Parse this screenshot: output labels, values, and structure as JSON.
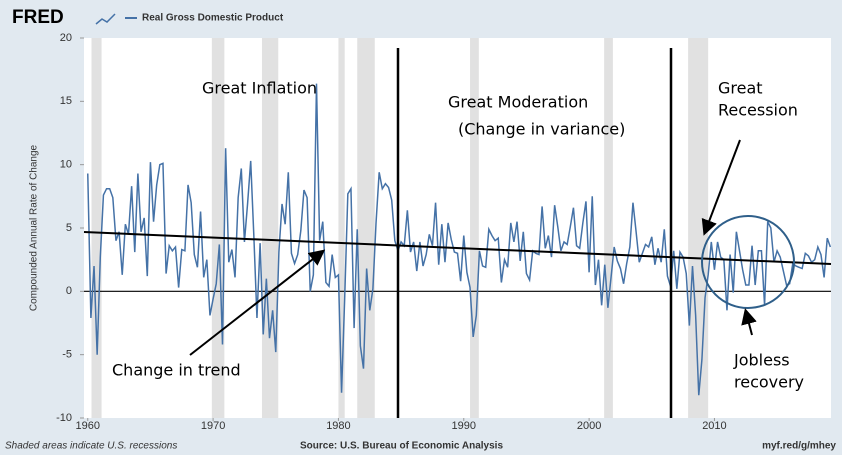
{
  "chart_data": {
    "type": "line",
    "brand": "FRED",
    "title": "Real Gross Domestic Product",
    "y_label": "Compounded Annual Rate of Change",
    "footer_left": "Shaded areas indicate U.S. recessions",
    "footer_source": "Source: U.S. Bureau of Economic Analysis",
    "footer_link": "myf.red/g/mhey",
    "annotations": {
      "inflation": "Great Inflation",
      "moderation": "Great Moderation",
      "variance": "(Change in variance)",
      "recession": [
        "Great",
        "Recession"
      ],
      "trend": "Change in trend",
      "jobless": [
        "Jobless",
        "recovery"
      ]
    },
    "xlim": [
      1959.7,
      2019.3
    ],
    "xticks": [
      1960,
      1970,
      1980,
      1990,
      2000,
      2010
    ],
    "ylim": [
      -10,
      20
    ],
    "yticks": [
      -10,
      -5,
      0,
      5,
      10,
      15,
      20
    ],
    "recessions": [
      [
        1960.3,
        1961.1
      ],
      [
        1969.9,
        1970.9
      ],
      [
        1973.9,
        1975.2
      ],
      [
        1980.0,
        1980.5
      ],
      [
        1981.5,
        1982.9
      ],
      [
        1990.5,
        1991.2
      ],
      [
        2001.2,
        2001.9
      ],
      [
        2007.9,
        2009.5
      ]
    ],
    "recession_color": "#e1e1e1",
    "series": [
      {
        "name": "Real Gross Domestic Product",
        "color": "#4572a7",
        "x": [
          1960,
          1960.25,
          1960.5,
          1960.75,
          1961,
          1961.25,
          1961.5,
          1961.75,
          1962,
          1962.25,
          1962.5,
          1962.75,
          1963,
          1963.25,
          1963.5,
          1963.75,
          1964,
          1964.25,
          1964.5,
          1964.75,
          1965,
          1965.25,
          1965.5,
          1965.75,
          1966,
          1966.25,
          1966.5,
          1966.75,
          1967,
          1967.25,
          1967.5,
          1967.75,
          1968,
          1968.25,
          1968.5,
          1968.75,
          1969,
          1969.25,
          1969.5,
          1969.75,
          1970,
          1970.25,
          1970.5,
          1970.75,
          1971,
          1971.25,
          1971.5,
          1971.75,
          1972,
          1972.25,
          1972.5,
          1972.75,
          1973,
          1973.25,
          1973.5,
          1973.75,
          1974,
          1974.25,
          1974.5,
          1974.75,
          1975,
          1975.25,
          1975.5,
          1975.75,
          1976,
          1976.25,
          1976.5,
          1976.75,
          1977,
          1977.25,
          1977.5,
          1977.75,
          1978,
          1978.25,
          1978.5,
          1978.75,
          1979,
          1979.25,
          1979.5,
          1979.75,
          1980,
          1980.25,
          1980.5,
          1980.75,
          1981,
          1981.25,
          1981.5,
          1981.75,
          1982,
          1982.25,
          1982.5,
          1982.75,
          1983,
          1983.25,
          1983.5,
          1983.75,
          1984,
          1984.25,
          1984.5,
          1984.75,
          1985,
          1985.25,
          1985.5,
          1985.75,
          1986,
          1986.25,
          1986.5,
          1986.75,
          1987,
          1987.25,
          1987.5,
          1987.75,
          1988,
          1988.25,
          1988.5,
          1988.75,
          1989,
          1989.25,
          1989.5,
          1989.75,
          1990,
          1990.25,
          1990.5,
          1990.75,
          1991,
          1991.25,
          1991.5,
          1991.75,
          1992,
          1992.25,
          1992.5,
          1992.75,
          1993,
          1993.25,
          1993.5,
          1993.75,
          1994,
          1994.25,
          1994.5,
          1994.75,
          1995,
          1995.25,
          1995.5,
          1995.75,
          1996,
          1996.25,
          1996.5,
          1996.75,
          1997,
          1997.25,
          1997.5,
          1997.75,
          1998,
          1998.25,
          1998.5,
          1998.75,
          1999,
          1999.25,
          1999.5,
          1999.75,
          2000,
          2000.25,
          2000.5,
          2000.75,
          2001,
          2001.25,
          2001.5,
          2001.75,
          2002,
          2002.25,
          2002.5,
          2002.75,
          2003,
          2003.25,
          2003.5,
          2003.75,
          2004,
          2004.25,
          2004.5,
          2004.75,
          2005,
          2005.25,
          2005.5,
          2005.75,
          2006,
          2006.25,
          2006.5,
          2006.75,
          2007,
          2007.25,
          2007.5,
          2007.75,
          2008,
          2008.25,
          2008.5,
          2008.75,
          2009,
          2009.25,
          2009.5,
          2009.75,
          2010,
          2010.25,
          2010.5,
          2010.75,
          2011,
          2011.25,
          2011.5,
          2011.75,
          2012,
          2012.25,
          2012.5,
          2012.75,
          2013,
          2013.25,
          2013.5,
          2013.75,
          2014,
          2014.25,
          2014.5,
          2014.75,
          2015,
          2015.25,
          2015.5,
          2015.75,
          2016,
          2016.25,
          2016.5,
          2016.75,
          2017,
          2017.25,
          2017.5,
          2017.75,
          2018,
          2018.25,
          2018.5,
          2018.75,
          2019,
          2019.25
        ],
        "values": [
          9.3,
          -2.1,
          2.0,
          -5.0,
          2.7,
          7.6,
          8.1,
          8.1,
          7.4,
          4.0,
          4.7,
          1.3,
          5.3,
          4.5,
          8.3,
          3.1,
          9.3,
          4.7,
          5.8,
          1.2,
          10.2,
          5.5,
          8.4,
          10.0,
          10.1,
          1.4,
          3.6,
          3.2,
          3.5,
          0.3,
          3.3,
          3.2,
          8.4,
          7.0,
          2.9,
          1.9,
          6.3,
          1.1,
          2.5,
          -1.9,
          -0.6,
          0.6,
          3.7,
          -4.2,
          11.3,
          2.3,
          3.3,
          1.1,
          7.4,
          9.7,
          3.9,
          6.9,
          10.3,
          4.4,
          -2.1,
          3.8,
          -3.4,
          1.0,
          -3.7,
          -1.5,
          -4.8,
          3.1,
          6.9,
          5.3,
          9.4,
          3.0,
          2.2,
          2.9,
          4.8,
          8.0,
          7.4,
          0.0,
          1.3,
          16.4,
          4.0,
          5.5,
          0.7,
          0.4,
          2.9,
          1.1,
          1.3,
          -8.0,
          -0.5,
          7.7,
          8.1,
          -2.9,
          4.9,
          -4.3,
          -6.1,
          1.8,
          -1.5,
          0.2,
          5.4,
          9.4,
          8.1,
          8.5,
          8.2,
          7.2,
          4.0,
          3.2,
          3.9,
          3.6,
          6.4,
          3.1,
          3.9,
          1.6,
          3.9,
          2.0,
          2.9,
          4.5,
          3.6,
          7.0,
          2.1,
          5.3,
          2.3,
          5.4,
          4.1,
          3.1,
          3.0,
          0.8,
          4.4,
          1.5,
          0.3,
          -3.6,
          -1.9,
          3.2,
          2.0,
          1.9,
          4.9,
          4.4,
          4.0,
          4.2,
          0.7,
          2.5,
          1.9,
          5.4,
          3.9,
          5.5,
          2.4,
          4.7,
          1.4,
          0.9,
          3.2,
          3.0,
          2.9,
          6.7,
          3.4,
          4.4,
          2.7,
          6.8,
          5.1,
          3.2,
          3.9,
          3.7,
          5.1,
          6.6,
          3.6,
          3.4,
          5.4,
          7.1,
          1.5,
          7.5,
          0.5,
          2.5,
          -1.1,
          2.1,
          -1.3,
          1.1,
          3.5,
          2.4,
          1.8,
          0.6,
          2.2,
          3.5,
          7.0,
          4.7,
          2.3,
          3.0,
          3.7,
          3.5,
          4.3,
          2.1,
          3.4,
          2.3,
          4.9,
          1.2,
          0.4,
          3.2,
          0.2,
          3.1,
          2.7,
          1.4,
          -2.7,
          2.0,
          -1.9,
          -8.2,
          -5.4,
          -0.5,
          1.3,
          3.9,
          1.7,
          3.9,
          2.7,
          2.5,
          -1.5,
          2.9,
          -0.1,
          4.7,
          3.2,
          1.7,
          0.5,
          0.5,
          3.6,
          0.5,
          3.2,
          3.2,
          -1.1,
          5.5,
          5.0,
          2.3,
          3.2,
          2.7,
          1.6,
          0.5,
          0.6,
          2.2,
          2.0,
          1.9,
          1.8,
          3.0,
          2.8,
          2.3,
          2.5,
          3.5,
          2.9,
          1.1,
          4.2,
          3.5
        ]
      }
    ]
  }
}
